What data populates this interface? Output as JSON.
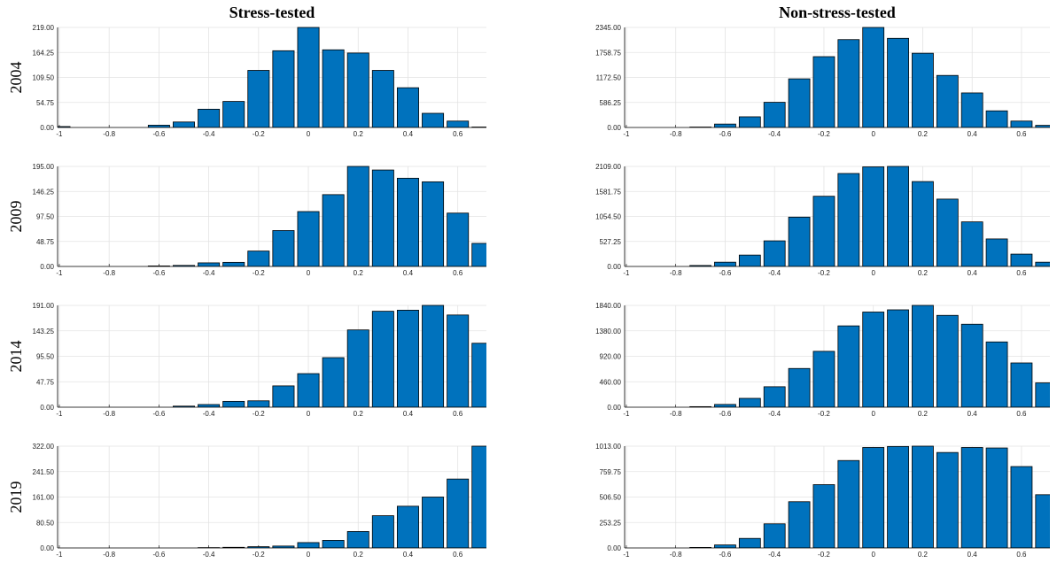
{
  "chart_data": [
    {
      "type": "histogram",
      "title": "Stress-tested",
      "ylabel": "2004",
      "color": "#0072bd",
      "grid": true,
      "bins": [
        -1.05,
        -0.95,
        -0.85,
        -0.75,
        -0.65,
        -0.55,
        -0.45,
        -0.35,
        -0.25,
        -0.15,
        -0.05,
        0.05,
        0.15,
        0.25,
        0.35,
        0.45,
        0.55,
        0.65,
        0.75
      ],
      "values": [
        2,
        0,
        0,
        0,
        5,
        12,
        40,
        57,
        125,
        168,
        219,
        170,
        163,
        125,
        87,
        31,
        14,
        1
      ],
      "xlim": [
        -1.007,
        0.715
      ],
      "xticks": [
        -1,
        -0.8,
        -0.6,
        -0.4,
        -0.2,
        0,
        0.2,
        0.4,
        0.6
      ],
      "ylim": [
        0,
        219
      ],
      "yticks": [
        {
          "value": 0,
          "label": "0.00"
        },
        {
          "value": 54.75,
          "label": "54.75"
        },
        {
          "value": 109.5,
          "label": "109.50"
        },
        {
          "value": 164.25,
          "label": "164.25"
        },
        {
          "value": 219,
          "label": "219.00"
        }
      ]
    },
    {
      "type": "histogram",
      "title": "Non-stress-tested",
      "color": "#0072bd",
      "grid": true,
      "bins": [
        -1.05,
        -0.95,
        -0.85,
        -0.75,
        -0.65,
        -0.55,
        -0.45,
        -0.35,
        -0.25,
        -0.15,
        -0.05,
        0.05,
        0.15,
        0.25,
        0.35,
        0.45,
        0.55,
        0.65,
        0.75
      ],
      "values": [
        0,
        0,
        0,
        10,
        80,
        250,
        590,
        1140,
        1660,
        2060,
        2345,
        2090,
        1740,
        1220,
        810,
        390,
        150,
        50
      ],
      "xlim": [
        -1.007,
        0.715
      ],
      "xticks": [
        -1,
        -0.8,
        -0.6,
        -0.4,
        -0.2,
        0,
        0.2,
        0.4,
        0.6
      ],
      "ylim": [
        0,
        2345
      ],
      "yticks": [
        {
          "value": 0,
          "label": "0.00"
        },
        {
          "value": 586.25,
          "label": "586.25"
        },
        {
          "value": 1172.5,
          "label": "1172.50"
        },
        {
          "value": 1758.75,
          "label": "1758.75"
        },
        {
          "value": 2345,
          "label": "2345.00"
        }
      ]
    },
    {
      "type": "histogram",
      "ylabel": "2009",
      "color": "#0072bd",
      "grid": true,
      "bins": [
        -1.05,
        -0.95,
        -0.85,
        -0.75,
        -0.65,
        -0.55,
        -0.45,
        -0.35,
        -0.25,
        -0.15,
        -0.05,
        0.05,
        0.15,
        0.25,
        0.35,
        0.45,
        0.55,
        0.65,
        0.75
      ],
      "values": [
        0,
        0,
        0,
        0,
        1,
        2,
        7,
        8,
        30,
        70,
        107,
        140,
        195,
        188,
        172,
        165,
        104,
        45
      ],
      "xlim": [
        -1.007,
        0.715
      ],
      "xticks": [
        -1,
        -0.8,
        -0.6,
        -0.4,
        -0.2,
        0,
        0.2,
        0.4,
        0.6
      ],
      "ylim": [
        0,
        195
      ],
      "yticks": [
        {
          "value": 0,
          "label": "0.00"
        },
        {
          "value": 48.75,
          "label": "48.75"
        },
        {
          "value": 97.5,
          "label": "97.50"
        },
        {
          "value": 146.25,
          "label": "146.25"
        },
        {
          "value": 195,
          "label": "195.00"
        }
      ]
    },
    {
      "type": "histogram",
      "color": "#0072bd",
      "grid": true,
      "bins": [
        -1.05,
        -0.95,
        -0.85,
        -0.75,
        -0.65,
        -0.55,
        -0.45,
        -0.35,
        -0.25,
        -0.15,
        -0.05,
        0.05,
        0.15,
        0.25,
        0.35,
        0.45,
        0.55,
        0.65,
        0.75
      ],
      "values": [
        0,
        0,
        0,
        20,
        90,
        240,
        540,
        1040,
        1480,
        1960,
        2100,
        2109,
        1790,
        1420,
        940,
        580,
        260,
        90
      ],
      "xlim": [
        -1.007,
        0.715
      ],
      "xticks": [
        -1,
        -0.8,
        -0.6,
        -0.4,
        -0.2,
        0,
        0.2,
        0.4,
        0.6
      ],
      "ylim": [
        0,
        2109
      ],
      "yticks": [
        {
          "value": 0,
          "label": "0.00"
        },
        {
          "value": 527.25,
          "label": "527.25"
        },
        {
          "value": 1054.5,
          "label": "1054.50"
        },
        {
          "value": 1581.75,
          "label": "1581.75"
        },
        {
          "value": 2109,
          "label": "2109.00"
        }
      ]
    },
    {
      "type": "histogram",
      "ylabel": "2014",
      "color": "#0072bd",
      "grid": true,
      "bins": [
        -1.05,
        -0.95,
        -0.85,
        -0.75,
        -0.65,
        -0.55,
        -0.45,
        -0.35,
        -0.25,
        -0.15,
        -0.05,
        0.05,
        0.15,
        0.25,
        0.35,
        0.45,
        0.55,
        0.65,
        0.75
      ],
      "values": [
        0,
        0,
        0,
        0,
        0,
        2,
        5,
        11,
        12,
        40,
        63,
        93,
        145,
        180,
        182,
        191,
        173,
        120
      ],
      "xlim": [
        -1.007,
        0.715
      ],
      "xticks": [
        -1,
        -0.8,
        -0.6,
        -0.4,
        -0.2,
        0,
        0.2,
        0.4,
        0.6
      ],
      "ylim": [
        0,
        191
      ],
      "yticks": [
        {
          "value": 0,
          "label": "0.00"
        },
        {
          "value": 47.75,
          "label": "47.75"
        },
        {
          "value": 95.5,
          "label": "95.50"
        },
        {
          "value": 143.25,
          "label": "143.25"
        },
        {
          "value": 191,
          "label": "191.00"
        }
      ]
    },
    {
      "type": "histogram",
      "color": "#0072bd",
      "grid": true,
      "bins": [
        -1.05,
        -0.95,
        -0.85,
        -0.75,
        -0.65,
        -0.55,
        -0.45,
        -0.35,
        -0.25,
        -0.15,
        -0.05,
        0.05,
        0.15,
        0.25,
        0.35,
        0.45,
        0.55,
        0.65,
        0.75
      ],
      "values": [
        0,
        0,
        0,
        10,
        50,
        160,
        370,
        700,
        1010,
        1470,
        1720,
        1760,
        1840,
        1660,
        1500,
        1180,
        800,
        440
      ],
      "xlim": [
        -1.007,
        0.715
      ],
      "xticks": [
        -1,
        -0.8,
        -0.6,
        -0.4,
        -0.2,
        0,
        0.2,
        0.4,
        0.6
      ],
      "ylim": [
        0,
        1840
      ],
      "yticks": [
        {
          "value": 0,
          "label": "0.00"
        },
        {
          "value": 460,
          "label": "460.00"
        },
        {
          "value": 920,
          "label": "920.00"
        },
        {
          "value": 1380,
          "label": "1380.00"
        },
        {
          "value": 1840,
          "label": "1840.00"
        }
      ]
    },
    {
      "type": "histogram",
      "ylabel": "2019",
      "color": "#0072bd",
      "grid": true,
      "bins": [
        -1.05,
        -0.95,
        -0.85,
        -0.75,
        -0.65,
        -0.55,
        -0.45,
        -0.35,
        -0.25,
        -0.15,
        -0.05,
        0.05,
        0.15,
        0.25,
        0.35,
        0.45,
        0.55,
        0.65,
        0.75
      ],
      "values": [
        0,
        0,
        0,
        0,
        0,
        0,
        1,
        2,
        4,
        6,
        17,
        24,
        52,
        102,
        132,
        161,
        218,
        322
      ],
      "xlim": [
        -1.007,
        0.715
      ],
      "xticks": [
        -1,
        -0.8,
        -0.6,
        -0.4,
        -0.2,
        0,
        0.2,
        0.4,
        0.6
      ],
      "ylim": [
        0,
        322
      ],
      "yticks": [
        {
          "value": 0,
          "label": "0.00"
        },
        {
          "value": 80.5,
          "label": "80.50"
        },
        {
          "value": 161,
          "label": "161.00"
        },
        {
          "value": 241.5,
          "label": "241.50"
        },
        {
          "value": 322,
          "label": "322.00"
        }
      ]
    },
    {
      "type": "histogram",
      "color": "#0072bd",
      "grid": true,
      "bins": [
        -1.05,
        -0.95,
        -0.85,
        -0.75,
        -0.65,
        -0.55,
        -0.45,
        -0.35,
        -0.25,
        -0.15,
        -0.05,
        0.05,
        0.15,
        0.25,
        0.35,
        0.45,
        0.55,
        0.65,
        0.75
      ],
      "values": [
        0,
        0,
        0,
        5,
        30,
        95,
        240,
        460,
        630,
        870,
        1000,
        1010,
        1013,
        950,
        1000,
        995,
        810,
        530
      ],
      "xlim": [
        -1.007,
        0.715
      ],
      "xticks": [
        -1,
        -0.8,
        -0.6,
        -0.4,
        -0.2,
        0,
        0.2,
        0.4,
        0.6
      ],
      "ylim": [
        0,
        1013
      ],
      "yticks": [
        {
          "value": 0,
          "label": "0.00"
        },
        {
          "value": 253.25,
          "label": "253.25"
        },
        {
          "value": 506.5,
          "label": "506.50"
        },
        {
          "value": 759.75,
          "label": "759.75"
        },
        {
          "value": 1013,
          "label": "1013.00"
        }
      ]
    }
  ]
}
